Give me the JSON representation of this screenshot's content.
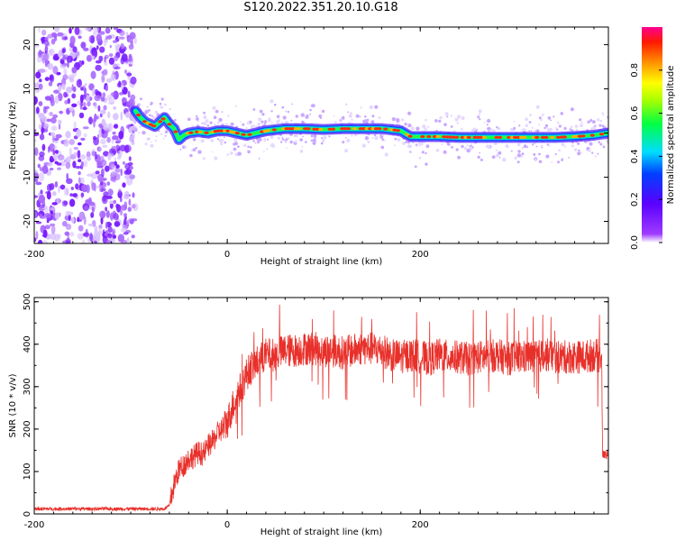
{
  "figure": {
    "title": "S120.2022.351.20.10.G18"
  },
  "chart_data": [
    {
      "type": "heatmap",
      "title": "S120.2022.351.20.10.G18",
      "xlabel": "Height of straight line (km)",
      "ylabel": "Frequency (Hz)",
      "xlim": [
        -200,
        395
      ],
      "ylim": [
        -25,
        24
      ],
      "x_ticks": [
        -200,
        0,
        200
      ],
      "y_ticks": [
        -20,
        -10,
        0,
        10,
        20
      ],
      "colorbar": {
        "label": "Normalized spectral amplitude",
        "range": [
          0,
          1
        ],
        "ticks": [
          0.0,
          0.2,
          0.4,
          0.6,
          0.8
        ],
        "colormap": "rainbow (purple-blue-cyan-green-yellow-red-magenta)"
      },
      "noise_region_x": [
        -200,
        -95
      ],
      "signal_ridge": {
        "x": [
          -95,
          -90,
          -85,
          -80,
          -75,
          -70,
          -65,
          -60,
          -55,
          -50,
          -45,
          -40,
          -30,
          -20,
          -10,
          0,
          10,
          20,
          30,
          40,
          60,
          80,
          100,
          120,
          140,
          160,
          180,
          190,
          200,
          220,
          240,
          260,
          280,
          300,
          320,
          340,
          360,
          380,
          395
        ],
        "y": [
          5,
          3.5,
          2.5,
          2,
          1.5,
          2.5,
          3.5,
          2,
          1,
          -1.5,
          -0.5,
          0,
          0.3,
          0,
          0.5,
          0.5,
          0,
          -0.5,
          0,
          0.5,
          1,
          1,
          0.8,
          1,
          1,
          1,
          0.5,
          -0.8,
          -0.8,
          -0.8,
          -1,
          -1,
          -1,
          -1,
          -1,
          -1,
          -0.8,
          -0.5,
          0
        ]
      }
    },
    {
      "type": "line",
      "xlabel": "Height of straight line (km)",
      "ylabel": "SNR (10 * v/v)",
      "xlim": [
        -200,
        395
      ],
      "ylim": [
        0,
        510
      ],
      "x_ticks": [
        -200,
        0,
        200
      ],
      "y_ticks": [
        0,
        100,
        200,
        300,
        400,
        500
      ],
      "series": [
        {
          "color": "#e8302a",
          "x": [
            -200,
            -180,
            -160,
            -140,
            -120,
            -100,
            -80,
            -70,
            -65,
            -60,
            -55,
            -50,
            -45,
            -40,
            -35,
            -30,
            -25,
            -20,
            -15,
            -10,
            -5,
            0,
            5,
            10,
            15,
            20,
            25,
            30,
            35,
            40,
            50,
            60,
            70,
            80,
            90,
            100,
            110,
            120,
            130,
            140,
            150,
            160,
            170,
            180,
            190,
            200,
            210,
            220,
            230,
            240,
            250,
            260,
            270,
            280,
            290,
            300,
            310,
            320,
            330,
            340,
            350,
            360,
            370,
            380,
            388,
            389,
            390,
            395
          ],
          "y": [
            12,
            12,
            12,
            12,
            12,
            12,
            12,
            12,
            12,
            20,
            70,
            105,
            115,
            130,
            135,
            145,
            140,
            160,
            170,
            190,
            200,
            215,
            250,
            280,
            300,
            330,
            345,
            355,
            365,
            375,
            375,
            385,
            385,
            390,
            390,
            385,
            385,
            380,
            385,
            390,
            390,
            385,
            375,
            370,
            375,
            370,
            365,
            375,
            370,
            370,
            365,
            370,
            370,
            375,
            365,
            370,
            370,
            370,
            375,
            370,
            370,
            370,
            370,
            375,
            370,
            140,
            140,
            140
          ]
        }
      ]
    }
  ]
}
